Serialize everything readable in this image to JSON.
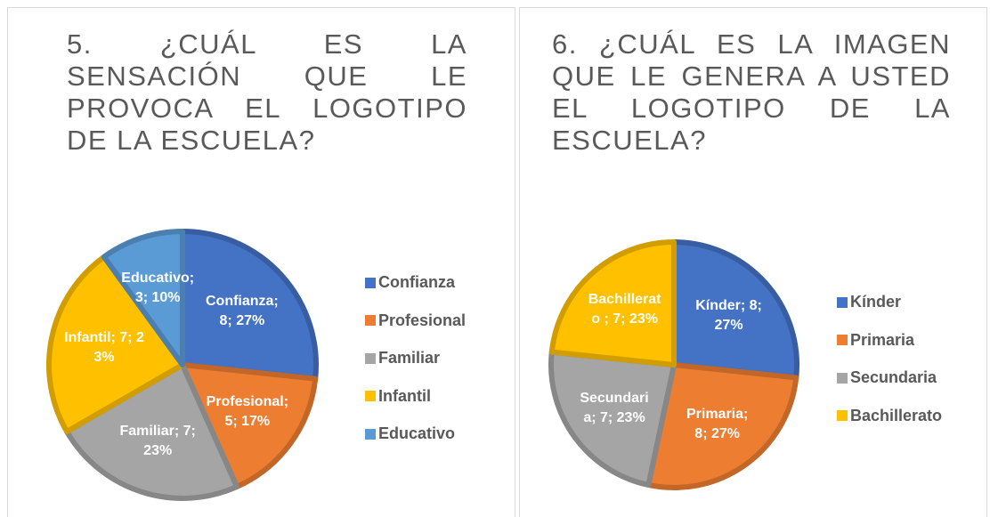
{
  "chart_data": [
    {
      "type": "pie",
      "title": "5. ¿CUÁL ES LA SENSACIÓN QUE LE PROVOCA EL LOGOTIPO DE LA ESCUELA?",
      "categories": [
        "Confianza",
        "Profesional",
        "Familiar",
        "Infantil",
        "Educativo"
      ],
      "values": [
        8,
        5,
        7,
        7,
        3
      ],
      "value_labels": [
        "Confianza; 8; 27%",
        "Profesional; 5; 17%",
        "Familiar; 7; 23%",
        "Infantil; 7; 23%",
        "Educativo; 3; 10%"
      ],
      "colors": [
        "#4472c4",
        "#ed7d31",
        "#a5a5a5",
        "#ffc000",
        "#5b9bd5"
      ],
      "legend": "right"
    },
    {
      "type": "pie",
      "title": "6. ¿CUÁL ES LA IMAGEN QUE LE GENERA A USTED EL LOGOTIPO DE LA ESCUELA?",
      "categories": [
        "Kínder",
        "Primaria",
        "Secundaria",
        "Bachillerato"
      ],
      "values": [
        8,
        8,
        7,
        7
      ],
      "value_labels": [
        "Kínder; 8; 27%",
        "Primaria; 8; 27%",
        "Secundaria; 7; 23%",
        "Bachillerato ; 7; 23%"
      ],
      "colors": [
        "#4472c4",
        "#ed7d31",
        "#a5a5a5",
        "#ffc000"
      ],
      "legend": "right"
    }
  ]
}
